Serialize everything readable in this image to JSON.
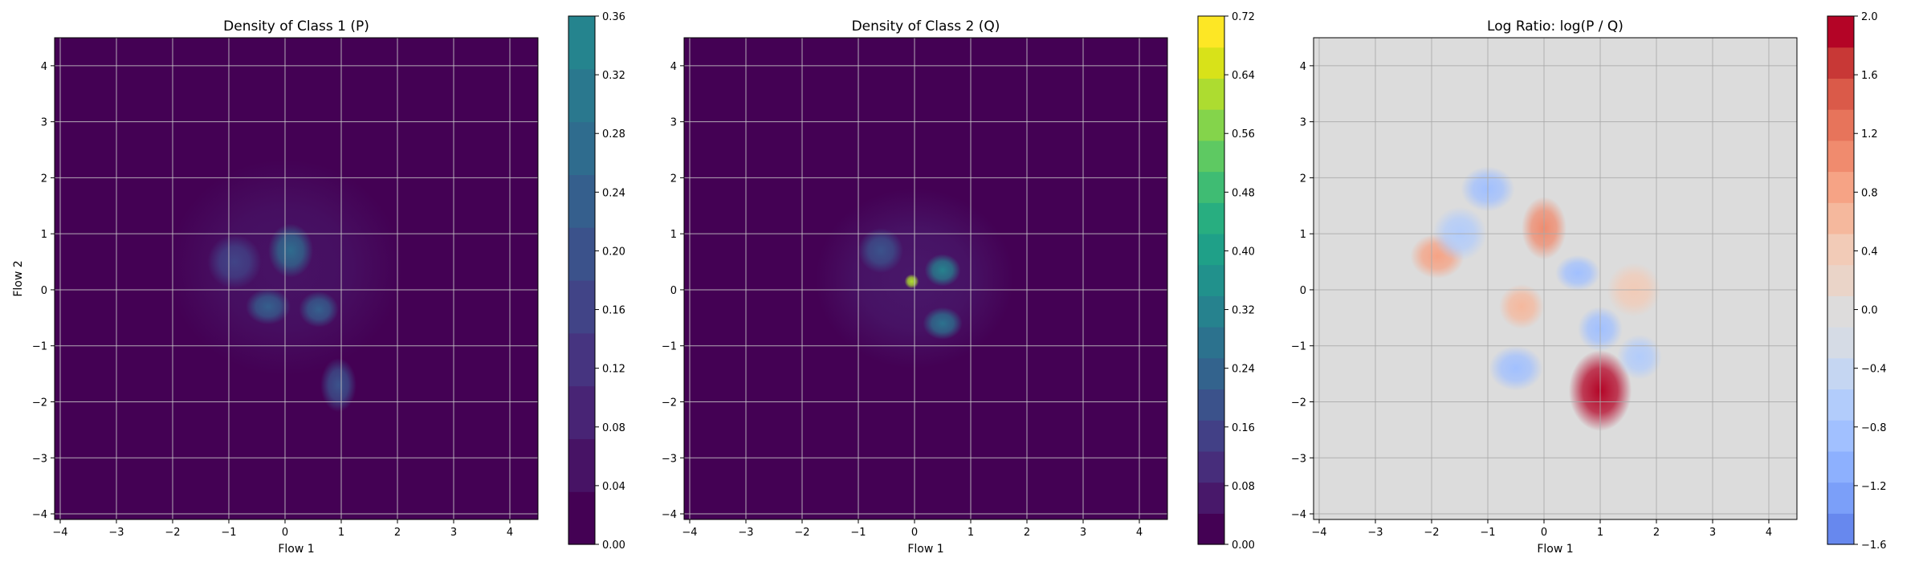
{
  "chart_data": [
    {
      "type": "heatmap",
      "title": "Density of Class 1 (P)",
      "xlabel": "Flow 1",
      "ylabel": "Flow 2",
      "xlim": [
        -4.1,
        4.5
      ],
      "ylim": [
        -4.1,
        4.5
      ],
      "xticks": [
        "−4",
        "−3",
        "−2",
        "−1",
        "0",
        "1",
        "2",
        "3",
        "4"
      ],
      "yticks": [
        "−4",
        "−3",
        "−2",
        "−1",
        "0",
        "1",
        "2",
        "3",
        "4"
      ],
      "grid": true,
      "colormap": "viridis",
      "colorbar": {
        "range": [
          0.0,
          0.36
        ],
        "ticks": [
          "0.00",
          "0.04",
          "0.08",
          "0.12",
          "0.16",
          "0.20",
          "0.24",
          "0.28",
          "0.32",
          "0.36"
        ],
        "colors": [
          "#440154",
          "#471365",
          "#482475",
          "#463480",
          "#414487",
          "#3b528b",
          "#355f8d",
          "#2f6c8e",
          "#2a788e",
          "#25848e"
        ]
      },
      "background_color": "#440154",
      "blobs": [
        {
          "x": 0.0,
          "y": 0.4,
          "sx": 1.3,
          "sy": 1.2,
          "level": 0.07
        },
        {
          "x": 0.1,
          "y": 0.7,
          "sx": 0.25,
          "sy": 0.3,
          "level": 0.26
        },
        {
          "x": -0.3,
          "y": -0.3,
          "sx": 0.25,
          "sy": 0.2,
          "level": 0.24
        },
        {
          "x": 0.6,
          "y": -0.35,
          "sx": 0.22,
          "sy": 0.2,
          "level": 0.22
        },
        {
          "x": 0.95,
          "y": -1.7,
          "sx": 0.2,
          "sy": 0.3,
          "level": 0.18
        },
        {
          "x": -0.9,
          "y": 0.5,
          "sx": 0.3,
          "sy": 0.3,
          "level": 0.16
        }
      ]
    },
    {
      "type": "heatmap",
      "title": "Density of Class 2 (Q)",
      "xlabel": "Flow 1",
      "ylabel": "",
      "xlim": [
        -4.1,
        4.5
      ],
      "ylim": [
        -4.1,
        4.5
      ],
      "xticks": [
        "−4",
        "−3",
        "−2",
        "−1",
        "0",
        "1",
        "2",
        "3",
        "4"
      ],
      "yticks": [
        "−4",
        "−3",
        "−2",
        "−1",
        "0",
        "1",
        "2",
        "3",
        "4"
      ],
      "grid": true,
      "colormap": "viridis",
      "colorbar": {
        "range": [
          0.0,
          0.72
        ],
        "ticks": [
          "0.00",
          "0.08",
          "0.16",
          "0.24",
          "0.32",
          "0.40",
          "0.48",
          "0.56",
          "0.64",
          "0.72"
        ],
        "colors": [
          "#440154",
          "#48186a",
          "#472d7b",
          "#424086",
          "#3b528b",
          "#33638d",
          "#2c728e",
          "#26828e",
          "#21918c",
          "#1fa088",
          "#28ae80",
          "#3fbc73",
          "#5ec962",
          "#84d44b",
          "#addc30",
          "#d8e219",
          "#fde725"
        ]
      },
      "background_color": "#440154",
      "blobs": [
        {
          "x": 0.0,
          "y": 0.2,
          "sx": 1.1,
          "sy": 1.0,
          "level": 0.08
        },
        {
          "x": -0.05,
          "y": 0.15,
          "sx": 0.08,
          "sy": 0.08,
          "level": 0.62
        },
        {
          "x": 0.5,
          "y": 0.35,
          "sx": 0.2,
          "sy": 0.18,
          "level": 0.3
        },
        {
          "x": 0.5,
          "y": -0.6,
          "sx": 0.22,
          "sy": 0.18,
          "level": 0.28
        },
        {
          "x": -0.6,
          "y": 0.7,
          "sx": 0.25,
          "sy": 0.25,
          "level": 0.2
        }
      ]
    },
    {
      "type": "heatmap",
      "title": "Log Ratio: log(P / Q)",
      "xlabel": "Flow 1",
      "ylabel": "",
      "xlim": [
        -4.1,
        4.5
      ],
      "ylim": [
        -4.1,
        4.5
      ],
      "xticks": [
        "−4",
        "−3",
        "−2",
        "−1",
        "0",
        "1",
        "2",
        "3",
        "4"
      ],
      "yticks": [
        "−4",
        "−3",
        "−2",
        "−1",
        "0",
        "1",
        "2",
        "3",
        "4"
      ],
      "grid": true,
      "colormap": "coolwarm",
      "colorbar": {
        "range": [
          -1.6,
          2.0
        ],
        "ticks": [
          "−1.6",
          "−1.2",
          "−0.8",
          "−0.4",
          "0.0",
          "0.4",
          "0.8",
          "1.2",
          "1.6",
          "2.0"
        ],
        "colors": [
          "#6788ee",
          "#7b9ff9",
          "#8db0fe",
          "#a1c0ff",
          "#b2ccfb",
          "#c5d6f2",
          "#d5dbe5",
          "#dddcdc",
          "#ead4c8",
          "#f2cbb7",
          "#f5b89d",
          "#f6a385",
          "#f08b6e",
          "#e7745b",
          "#da5a49",
          "#c83836",
          "#b40426"
        ]
      },
      "background_color": "#dcdcdc",
      "blobs": [
        {
          "x": 1.0,
          "y": -1.8,
          "sx": 0.35,
          "sy": 0.45,
          "level": 1.8
        },
        {
          "x": 0.0,
          "y": 1.1,
          "sx": 0.25,
          "sy": 0.35,
          "level": 1.0
        },
        {
          "x": -1.9,
          "y": 0.6,
          "sx": 0.3,
          "sy": 0.25,
          "level": 0.8
        },
        {
          "x": -0.4,
          "y": -0.3,
          "sx": 0.25,
          "sy": 0.25,
          "level": 0.6
        },
        {
          "x": 1.6,
          "y": 0.0,
          "sx": 0.3,
          "sy": 0.3,
          "level": 0.5
        },
        {
          "x": -1.0,
          "y": 1.8,
          "sx": 0.3,
          "sy": 0.25,
          "level": -0.9
        },
        {
          "x": -1.5,
          "y": 1.0,
          "sx": 0.3,
          "sy": 0.3,
          "level": -0.7
        },
        {
          "x": 0.6,
          "y": 0.3,
          "sx": 0.25,
          "sy": 0.2,
          "level": -0.9
        },
        {
          "x": 1.0,
          "y": -0.7,
          "sx": 0.25,
          "sy": 0.25,
          "level": -0.9
        },
        {
          "x": -0.5,
          "y": -1.4,
          "sx": 0.3,
          "sy": 0.25,
          "level": -0.8
        },
        {
          "x": 1.7,
          "y": -1.2,
          "sx": 0.25,
          "sy": 0.25,
          "level": -0.6
        }
      ]
    }
  ]
}
